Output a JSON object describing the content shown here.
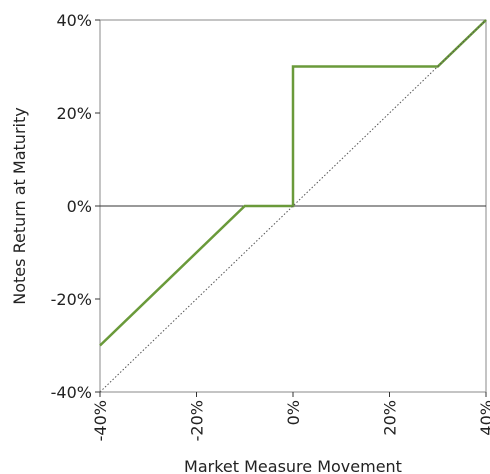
{
  "chart_data": {
    "type": "line",
    "xlabel": "Market Measure Movement",
    "ylabel": "Notes Return at Maturity",
    "xlim": [
      -40,
      40
    ],
    "ylim": [
      -40,
      40
    ],
    "x_ticks": [
      -40,
      -20,
      0,
      20,
      40
    ],
    "y_ticks": [
      -40,
      -20,
      0,
      20,
      40
    ],
    "x_tick_labels": [
      "-40%",
      "-20%",
      "0%",
      "20%",
      "40%"
    ],
    "y_tick_labels": [
      "-40%",
      "-20%",
      "0%",
      "20%",
      "40%"
    ],
    "grid": false,
    "series": [
      {
        "style": "solid",
        "color": "#6a9a3a",
        "x": [
          -40,
          -10,
          0,
          0,
          30,
          40
        ],
        "y": [
          -30,
          0,
          0,
          30,
          30,
          40
        ]
      },
      {
        "style": "dotted",
        "color": "#555555",
        "x": [
          -40,
          40
        ],
        "y": [
          -40,
          40
        ]
      }
    ],
    "reference_lines": [
      {
        "axis": "y",
        "value": 0,
        "color": "#333333"
      }
    ]
  }
}
